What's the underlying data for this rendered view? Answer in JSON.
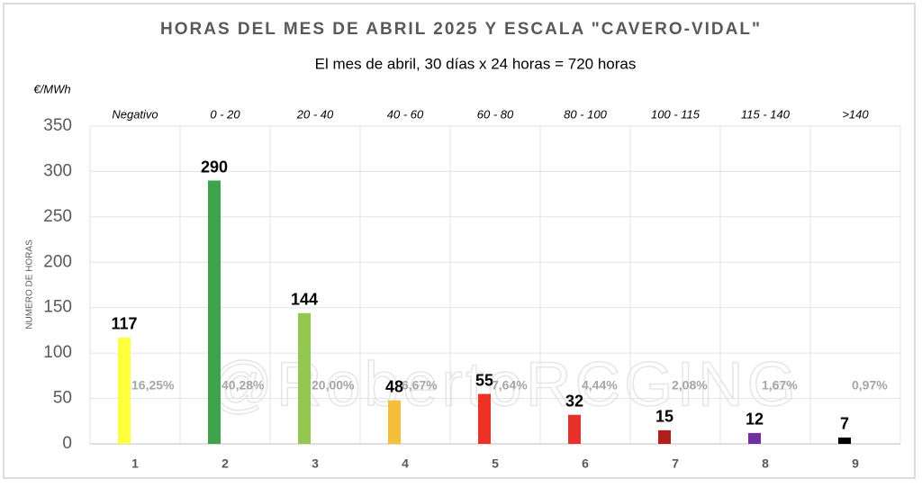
{
  "chart_data": {
    "type": "bar",
    "title": "HORAS DEL MES DE ABRIL 2025 Y ESCALA \"CAVERO-VIDAL\"",
    "subtitle": "El mes de abril, 30 días x 24 horas  = 720 horas",
    "unit_label": "€/MWh",
    "y_label": "NUMERO DE HORAS",
    "watermark": "@RobertoRCGING",
    "categories": [
      "1",
      "2",
      "3",
      "4",
      "5",
      "6",
      "7",
      "8",
      "9"
    ],
    "range_labels": [
      "Negativo",
      "0 - 20",
      "20 - 40",
      "40 - 60",
      "60 - 80",
      "80 - 100",
      "100 - 115",
      "115 - 140",
      ">140"
    ],
    "values": [
      117,
      290,
      144,
      48,
      55,
      32,
      15,
      12,
      7
    ],
    "percent_labels": [
      "16,25%",
      "40,28%",
      "20,00%",
      "6,67%",
      "7,64%",
      "4,44%",
      "2,08%",
      "1,67%",
      "0,97%"
    ],
    "colors": [
      "#ffff3c",
      "#3fa34d",
      "#92c84f",
      "#f5bf3c",
      "#ee3124",
      "#e8302a",
      "#b01e1e",
      "#7030a0",
      "#000000"
    ],
    "ylim": [
      0,
      350
    ],
    "yticks": [
      0,
      50,
      100,
      150,
      200,
      250,
      300,
      350
    ],
    "grid": true
  }
}
